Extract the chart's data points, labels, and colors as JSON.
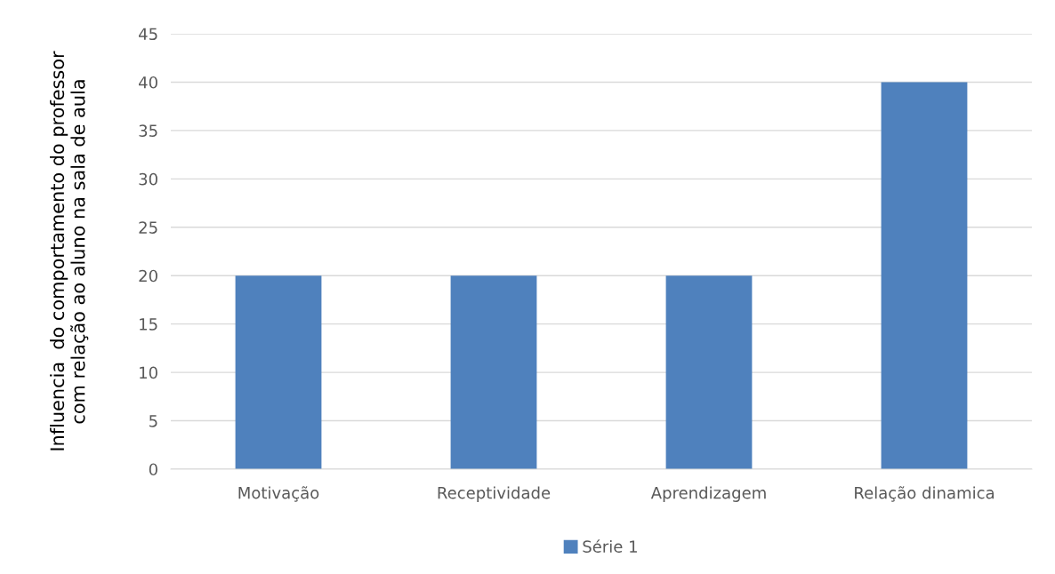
{
  "chart_data": {
    "type": "bar",
    "ylabel": "Influencia  do comportamento do professor\ncom relação ao aluno na sala de aula",
    "categories": [
      "Motivação",
      "Receptividade",
      "Aprendizagem",
      "Relação dinamica"
    ],
    "series": [
      {
        "name": "Série 1",
        "color": "#4f81bd",
        "values": [
          20,
          20,
          20,
          40
        ]
      }
    ],
    "ylim": [
      0,
      45
    ],
    "yticks": [
      0,
      5,
      10,
      15,
      20,
      25,
      30,
      35,
      40,
      45
    ],
    "grid": "y",
    "legend": "bottom"
  }
}
